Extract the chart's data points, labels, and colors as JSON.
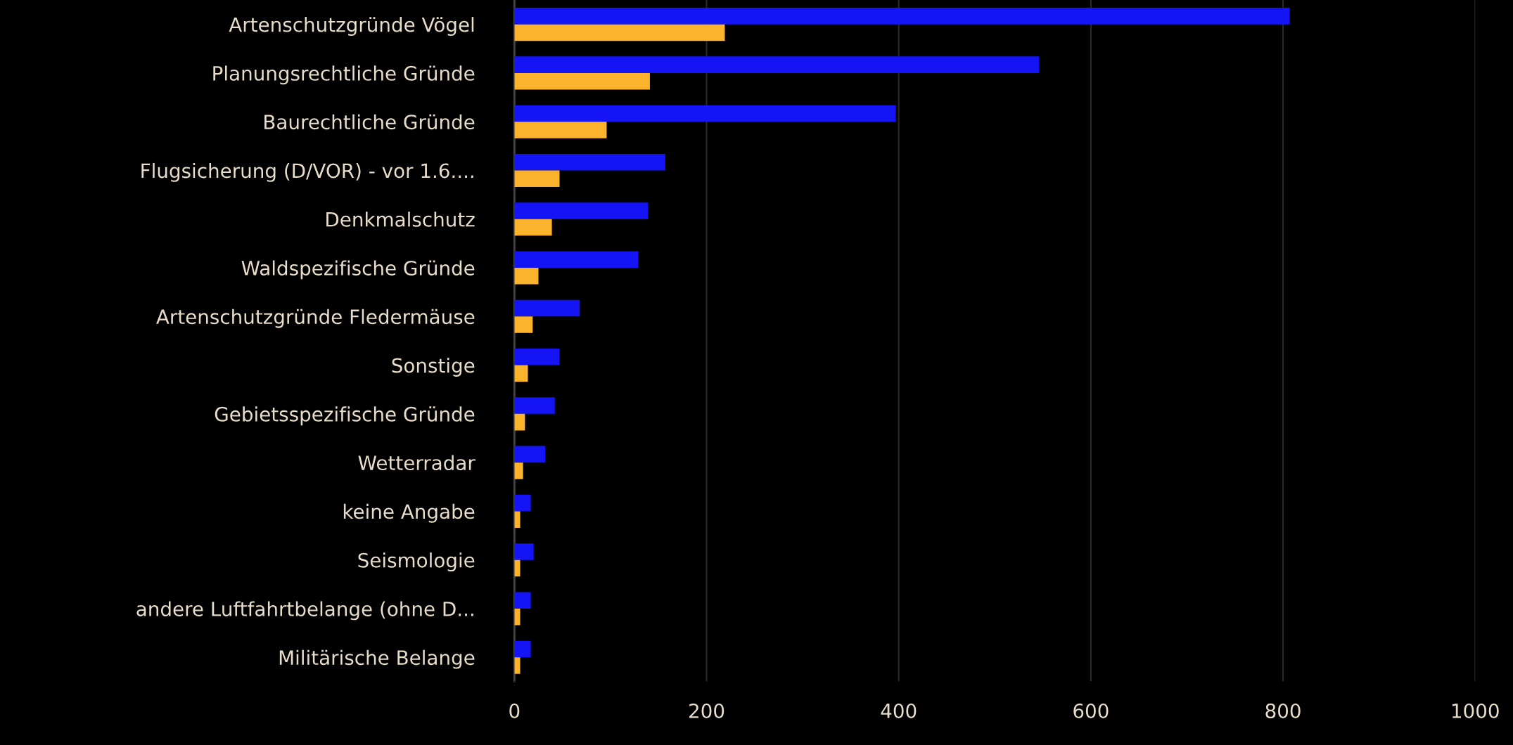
{
  "chart_data": {
    "type": "bar",
    "orientation": "horizontal",
    "categories": [
      "Artenschutzgründe Vögel",
      "Planungsrechtliche Gründe",
      "Baurechtliche Gründe",
      "Flugsicherung (D/VOR) - vor 1.6....",
      "Denkmalschutz",
      "Waldspezifische Gründe",
      "Artenschutzgründe Fledermäuse",
      "Sonstige",
      "Gebietsspezifische Gründe",
      "Wetterradar",
      "keine Angabe",
      "Seismologie",
      "andere Luftfahrtbelange (ohne D...",
      "Militärische Belange"
    ],
    "series": [
      {
        "color": "#1414f5",
        "values": [
          807,
          546,
          397,
          157,
          139,
          129,
          68,
          47,
          42,
          32,
          17,
          20,
          17,
          17
        ]
      },
      {
        "color": "#fbb32d",
        "values": [
          219,
          141,
          96,
          47,
          39,
          25,
          19,
          14,
          11,
          9,
          6,
          6,
          6,
          6
        ]
      }
    ],
    "xlim": [
      0,
      1000
    ],
    "xticks": [
      0,
      200,
      400,
      600,
      800,
      1000
    ],
    "grid": "x",
    "legend": false
  }
}
